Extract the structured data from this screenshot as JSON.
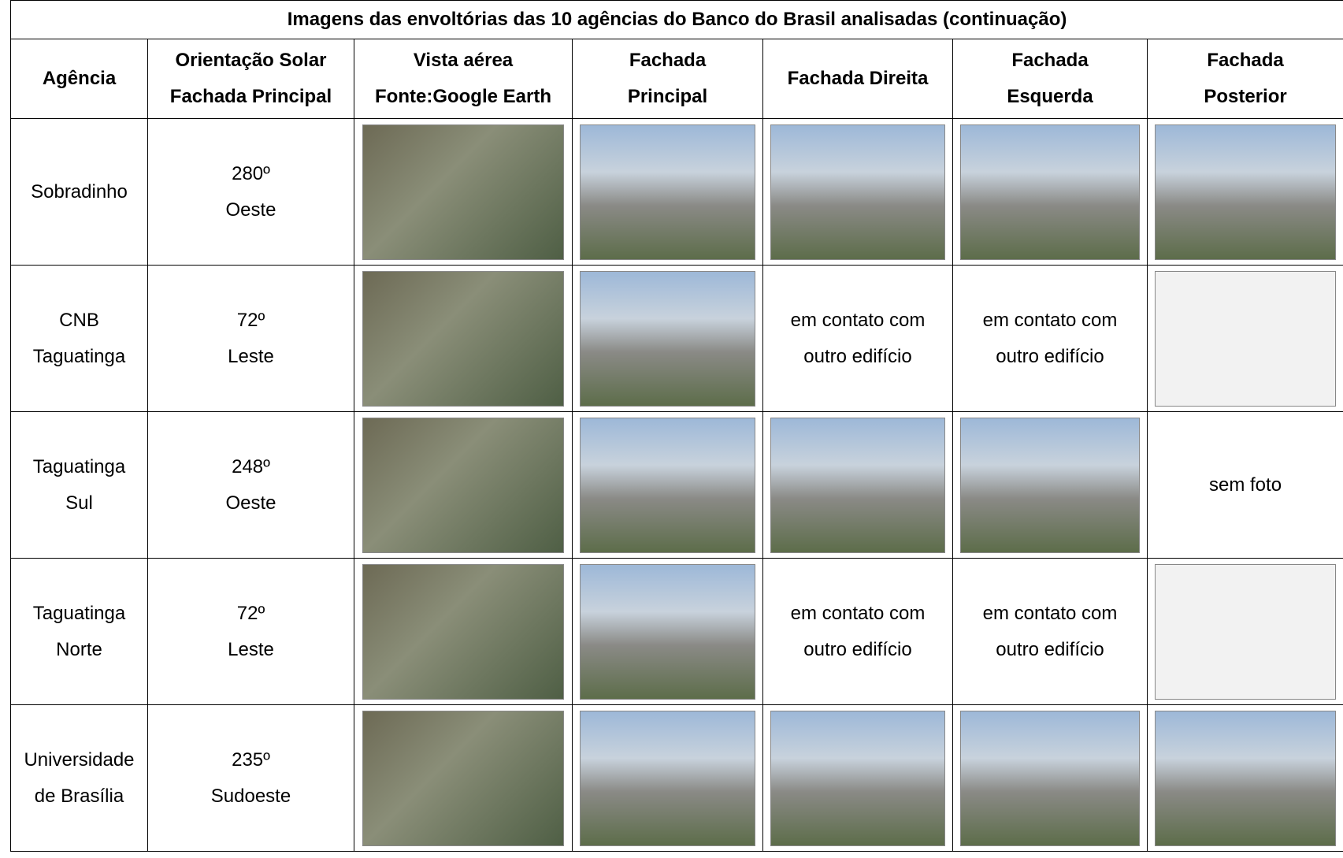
{
  "table": {
    "title": "Imagens das envoltórias das 10 agências do Banco do Brasil analisadas (continuação)",
    "headers": [
      [
        "Agência"
      ],
      [
        "Orientação Solar",
        "Fachada Principal"
      ],
      [
        "Vista aérea",
        "Fonte:Google Earth"
      ],
      [
        "Fachada",
        "Principal"
      ],
      [
        "Fachada Direita"
      ],
      [
        "Fachada",
        "Esquerda"
      ],
      [
        "Fachada",
        "Posterior"
      ]
    ],
    "rows": [
      {
        "agency": [
          "Sobradinho"
        ],
        "orientation": [
          "280º",
          "Oeste"
        ]
      },
      {
        "agency": [
          "CNB",
          "Taguatinga"
        ],
        "orientation": [
          "72º",
          "Leste"
        ],
        "right": [
          "em contato com",
          "outro edifício"
        ],
        "left": [
          "em contato com",
          "outro edifício"
        ]
      },
      {
        "agency": [
          "Taguatinga",
          "Sul"
        ],
        "orientation": [
          "248º",
          "Oeste"
        ],
        "rear": [
          "sem foto"
        ]
      },
      {
        "agency": [
          "Taguatinga",
          "Norte"
        ],
        "orientation": [
          "72º",
          "Leste"
        ],
        "right": [
          "em contato com",
          "outro edifício"
        ],
        "left": [
          "em contato com",
          "outro edifício"
        ]
      },
      {
        "agency": [
          "Universidade",
          "de Brasília"
        ],
        "orientation": [
          "235º",
          "Sudoeste"
        ]
      }
    ]
  }
}
